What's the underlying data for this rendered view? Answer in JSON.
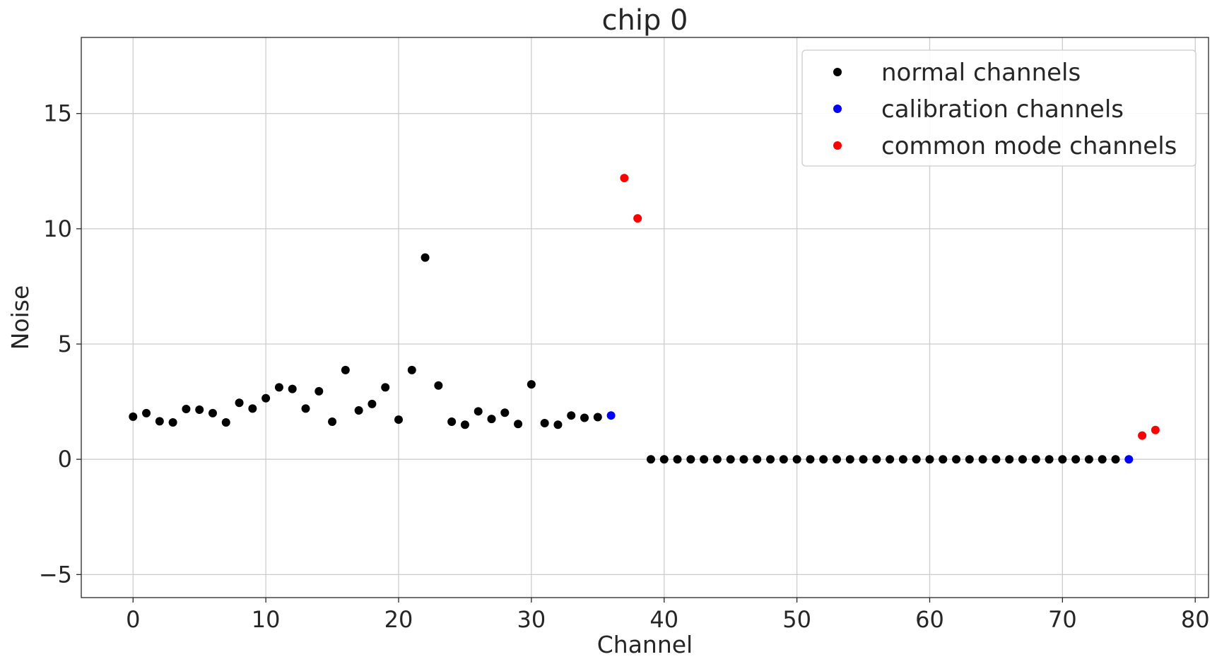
{
  "chart_data": {
    "type": "scatter",
    "title": "chip 0",
    "xlabel": "Channel",
    "ylabel": "Noise",
    "xlim": [
      -3.9,
      81
    ],
    "ylim": [
      -6,
      18.3
    ],
    "xticks": [
      0,
      10,
      20,
      30,
      40,
      50,
      60,
      70,
      80
    ],
    "yticks": [
      -5,
      0,
      5,
      10,
      15
    ],
    "ytick_labels": [
      "−5",
      "0",
      "5",
      "10",
      "15"
    ],
    "grid": true,
    "legend_position": "upper right",
    "series": [
      {
        "name": "normal channels",
        "color": "#000000",
        "points": [
          [
            0,
            1.85
          ],
          [
            1,
            2.0
          ],
          [
            2,
            1.65
          ],
          [
            3,
            1.6
          ],
          [
            4,
            2.18
          ],
          [
            5,
            2.15
          ],
          [
            6,
            2.0
          ],
          [
            7,
            1.6
          ],
          [
            8,
            2.45
          ],
          [
            9,
            2.2
          ],
          [
            10,
            2.65
          ],
          [
            11,
            3.12
          ],
          [
            12,
            3.05
          ],
          [
            13,
            2.2
          ],
          [
            14,
            2.95
          ],
          [
            15,
            1.63
          ],
          [
            16,
            3.87
          ],
          [
            17,
            2.12
          ],
          [
            18,
            2.4
          ],
          [
            19,
            3.12
          ],
          [
            20,
            1.72
          ],
          [
            21,
            3.87
          ],
          [
            22,
            8.75
          ],
          [
            23,
            3.2
          ],
          [
            24,
            1.63
          ],
          [
            25,
            1.5
          ],
          [
            26,
            2.08
          ],
          [
            27,
            1.75
          ],
          [
            28,
            2.02
          ],
          [
            29,
            1.53
          ],
          [
            30,
            3.25
          ],
          [
            31,
            1.57
          ],
          [
            32,
            1.5
          ],
          [
            33,
            1.9
          ],
          [
            34,
            1.8
          ],
          [
            35,
            1.83
          ],
          [
            39,
            0
          ],
          [
            40,
            0
          ],
          [
            41,
            0
          ],
          [
            42,
            0
          ],
          [
            43,
            0
          ],
          [
            44,
            0
          ],
          [
            45,
            0
          ],
          [
            46,
            0
          ],
          [
            47,
            0
          ],
          [
            48,
            0
          ],
          [
            49,
            0
          ],
          [
            50,
            0
          ],
          [
            51,
            0
          ],
          [
            52,
            0
          ],
          [
            53,
            0
          ],
          [
            54,
            0
          ],
          [
            55,
            0
          ],
          [
            56,
            0
          ],
          [
            57,
            0
          ],
          [
            58,
            0
          ],
          [
            59,
            0
          ],
          [
            60,
            0
          ],
          [
            61,
            0
          ],
          [
            62,
            0
          ],
          [
            63,
            0
          ],
          [
            64,
            0
          ],
          [
            65,
            0
          ],
          [
            66,
            0
          ],
          [
            67,
            0
          ],
          [
            68,
            0
          ],
          [
            69,
            0
          ],
          [
            70,
            0
          ],
          [
            71,
            0
          ],
          [
            72,
            0
          ],
          [
            73,
            0
          ],
          [
            74,
            0
          ]
        ]
      },
      {
        "name": "calibration channels",
        "color": "#0000ff",
        "points": [
          [
            36,
            1.9
          ],
          [
            75,
            0
          ]
        ]
      },
      {
        "name": "common mode channels",
        "color": "#ff0000",
        "points": [
          [
            37,
            12.2
          ],
          [
            38,
            10.45
          ],
          [
            76,
            1.03
          ],
          [
            77,
            1.27
          ]
        ]
      }
    ]
  }
}
